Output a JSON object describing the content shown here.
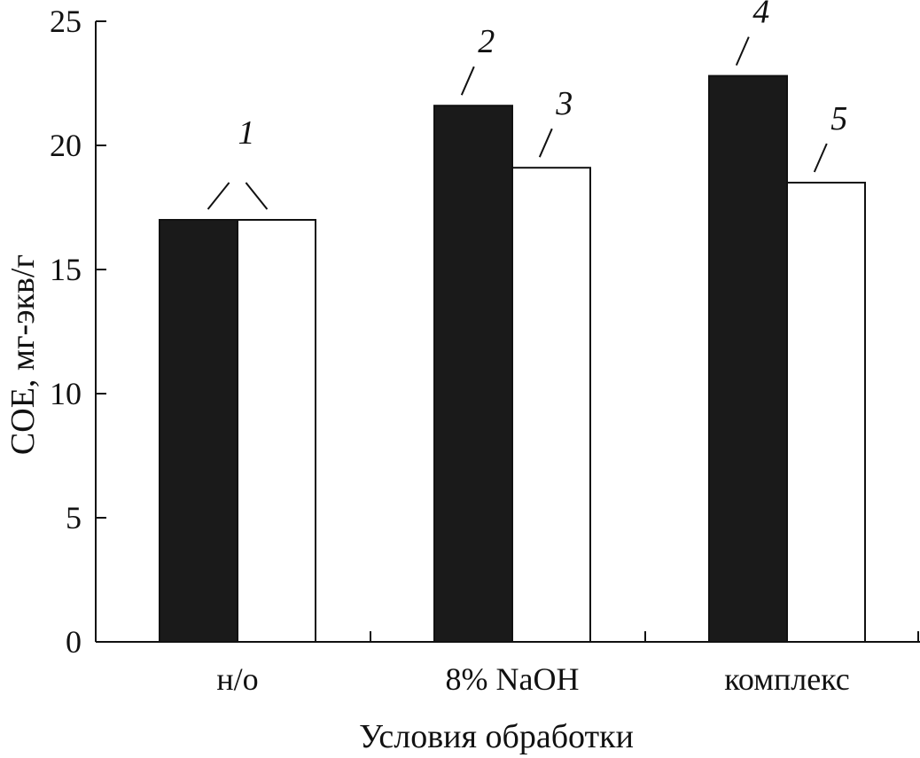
{
  "chart_data": {
    "type": "bar",
    "xlabel": "Условия обработки",
    "ylabel": "СОЕ, мг-экв/г",
    "ylim": [
      0,
      25
    ],
    "yticks": [
      0,
      5,
      10,
      15,
      20,
      25
    ],
    "categories": [
      "н/о",
      "8% NaOH",
      "комплекс"
    ],
    "grid": false,
    "legend": "none",
    "bars": [
      {
        "category": "н/о",
        "value": 17.0,
        "fill": "#1a1a1a",
        "label": "1"
      },
      {
        "category": "н/о",
        "value": 17.0,
        "fill": "#ffffff",
        "label": ""
      },
      {
        "category": "8% NaOH",
        "value": 21.6,
        "fill": "#1a1a1a",
        "label": "2"
      },
      {
        "category": "8% NaOH",
        "value": 19.1,
        "fill": "#ffffff",
        "label": "3"
      },
      {
        "category": "комплекс",
        "value": 22.8,
        "fill": "#1a1a1a",
        "label": "4"
      },
      {
        "category": "комплекс",
        "value": 18.5,
        "fill": "#ffffff",
        "label": "5"
      }
    ]
  }
}
